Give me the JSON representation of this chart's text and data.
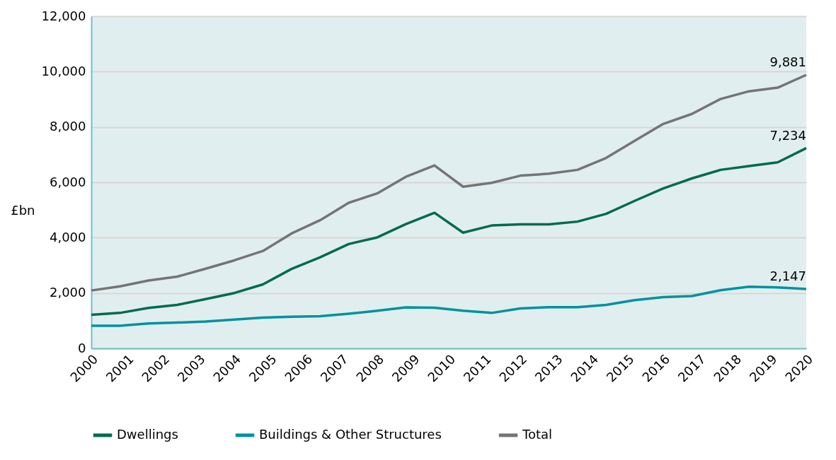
{
  "chart_data": {
    "type": "line",
    "ylabel": "£bn",
    "x": [
      2000,
      2000.8,
      2001.6,
      2002.4,
      2003.2,
      2004,
      2004.8,
      2005.6,
      2006.4,
      2007.2,
      2008,
      2008.8,
      2009.6,
      2010.4,
      2011.2,
      2012,
      2012.8,
      2013.6,
      2014.4,
      2015.2,
      2016,
      2016.8,
      2017.6,
      2018.4,
      2019.2,
      2020
    ],
    "series": [
      {
        "name": "Dwellings",
        "color": "#006b4f",
        "values": [
          1210,
          1280,
          1460,
          1570,
          1780,
          2000,
          2310,
          2870,
          3290,
          3770,
          4010,
          4490,
          4900,
          4180,
          4440,
          4480,
          4480,
          4580,
          4860,
          5330,
          5780,
          6140,
          6450,
          6590,
          6720,
          7234
        ],
        "value_labels": [
          null,
          null,
          null,
          null,
          null,
          null,
          null,
          null,
          null,
          null,
          null,
          null,
          null,
          null,
          null,
          null,
          null,
          null,
          null,
          null,
          null,
          null,
          null,
          null,
          null,
          "7,234"
        ]
      },
      {
        "name": "Buildings & Other Structures",
        "color": "#00929f",
        "values": [
          820,
          820,
          900,
          930,
          970,
          1040,
          1110,
          1140,
          1160,
          1250,
          1360,
          1480,
          1470,
          1360,
          1280,
          1440,
          1490,
          1490,
          1570,
          1740,
          1850,
          1890,
          2100,
          2230,
          2200,
          2147
        ],
        "value_labels": [
          null,
          null,
          null,
          null,
          null,
          null,
          null,
          null,
          null,
          null,
          null,
          null,
          null,
          null,
          null,
          null,
          null,
          null,
          null,
          null,
          null,
          null,
          null,
          null,
          null,
          "2,147"
        ]
      },
      {
        "name": "Total",
        "color": "#747476",
        "values": [
          2090,
          2240,
          2450,
          2590,
          2880,
          3180,
          3520,
          4150,
          4630,
          5260,
          5600,
          6200,
          6610,
          5840,
          5980,
          6240,
          6310,
          6450,
          6880,
          7500,
          8110,
          8470,
          9010,
          9290,
          9420,
          9881
        ],
        "value_labels": [
          null,
          null,
          null,
          null,
          null,
          null,
          null,
          null,
          null,
          null,
          null,
          null,
          null,
          null,
          null,
          null,
          null,
          null,
          null,
          null,
          null,
          null,
          null,
          null,
          null,
          "9,881"
        ]
      }
    ],
    "xlim": [
      2000,
      2020
    ],
    "xticks": [
      2000,
      2001,
      2002,
      2003,
      2004,
      2005,
      2006,
      2007,
      2008,
      2009,
      2010,
      2011,
      2012,
      2013,
      2014,
      2015,
      2016,
      2017,
      2018,
      2019,
      2020
    ],
    "ylim": [
      0,
      12000
    ],
    "yticks": [
      0,
      {
        "value": 2000,
        "label": "2,000"
      },
      {
        "value": 4000,
        "label": "4,000"
      },
      {
        "value": 6000,
        "label": "6,000"
      },
      {
        "value": 8000,
        "label": "8,000"
      },
      {
        "value": 10000,
        "label": "10,000"
      },
      {
        "value": 12000,
        "label": "12,000"
      }
    ],
    "grid": "y",
    "legend": "bottom",
    "marker": "none",
    "line_style": "solid"
  }
}
